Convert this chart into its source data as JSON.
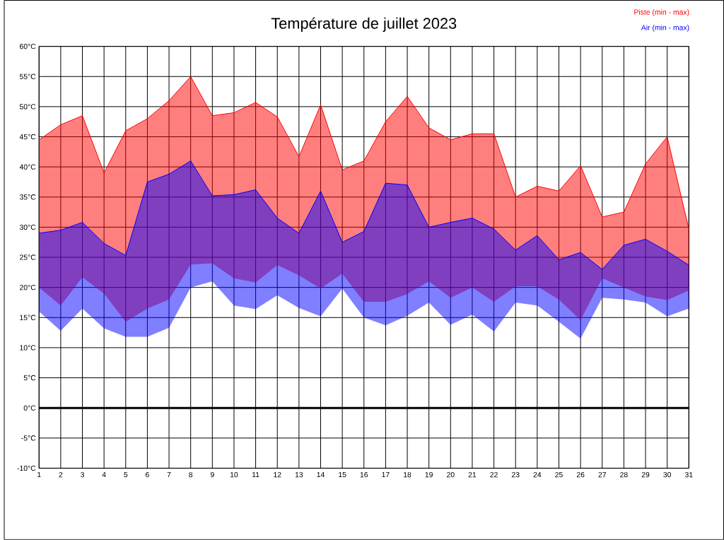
{
  "chart_data": {
    "type": "line",
    "title": "Température de juillet 2023",
    "x": [
      1,
      2,
      3,
      4,
      5,
      6,
      7,
      8,
      9,
      10,
      11,
      12,
      13,
      14,
      15,
      16,
      17,
      18,
      19,
      20,
      21,
      22,
      23,
      24,
      25,
      26,
      27,
      28,
      29,
      30,
      31
    ],
    "series": [
      {
        "name": "Piste (min - max)",
        "color": "#ff0000",
        "values": [
          44.5,
          47,
          48.5,
          39,
          46,
          48,
          51,
          55,
          48.5,
          49,
          50.7,
          48.3,
          41.7,
          50.3,
          39.5,
          41,
          47.5,
          51.7,
          46.5,
          44.5,
          45.5,
          45.5,
          35,
          36.8,
          36,
          40.2,
          31.7,
          32.5,
          40.5,
          45,
          29.7
        ],
        "upper": [
          44.5,
          47,
          48.5,
          39,
          46,
          48,
          51,
          55,
          48.5,
          49,
          50.7,
          48.3,
          41.7,
          50.3,
          39.5,
          41,
          47.5,
          51.7,
          46.5,
          44.5,
          45.5,
          45.5,
          35,
          36.8,
          36,
          40.2,
          31.7,
          32.5,
          40.5,
          45,
          29.7
        ],
        "lower": [
          20,
          17,
          21.7,
          19,
          14.3,
          16.5,
          18,
          23.8,
          24,
          21.5,
          20.8,
          23.7,
          22,
          19.8,
          22.3,
          17.6,
          17.6,
          18.9,
          21,
          18.3,
          20,
          17.6,
          20.2,
          20.2,
          18,
          14.6,
          21.5,
          20,
          18.5,
          17.9,
          19.5
        ]
      },
      {
        "name": "Air (min - max)",
        "color": "#0000ff",
        "values": [
          29,
          29.5,
          30.8,
          27.3,
          25.3,
          37.5,
          38.8,
          41,
          35.2,
          35.4,
          36.2,
          31.5,
          29,
          36,
          27.5,
          29.3,
          37.3,
          37,
          30,
          30.8,
          31.5,
          29.7,
          26.2,
          28.6,
          24.6,
          25.8,
          23,
          27,
          28,
          26,
          23.7
        ],
        "upper": [
          29,
          29.5,
          30.8,
          27.3,
          25.3,
          37.5,
          38.8,
          41,
          35.2,
          35.4,
          36.2,
          31.5,
          29,
          36,
          27.5,
          29.3,
          37.3,
          37,
          30,
          30.8,
          31.5,
          29.7,
          26.2,
          28.6,
          24.6,
          25.8,
          23,
          27,
          28,
          26,
          23.7
        ],
        "lower": [
          16,
          12.8,
          16.5,
          13.2,
          11.8,
          11.8,
          13.3,
          20,
          21,
          17,
          16.4,
          18.7,
          16.6,
          15.2,
          19.8,
          15,
          13.7,
          15.3,
          17.5,
          13.8,
          15.5,
          12.7,
          17.5,
          17,
          14.3,
          11.5,
          18.3,
          18,
          17.5,
          15.2,
          16.5
        ]
      }
    ],
    "xlim": [
      1,
      31
    ],
    "xticks": [
      1,
      2,
      3,
      4,
      5,
      6,
      7,
      8,
      9,
      10,
      11,
      12,
      13,
      14,
      15,
      16,
      17,
      18,
      19,
      20,
      21,
      22,
      23,
      24,
      25,
      26,
      27,
      28,
      29,
      30,
      31
    ],
    "ylim": [
      -10,
      60
    ],
    "yticks": [
      {
        "value": -10,
        "label": "-10°C"
      },
      {
        "value": -5,
        "label": "-5°C"
      },
      {
        "value": 0,
        "label": "0°C"
      },
      {
        "value": 5,
        "label": "5°C"
      },
      {
        "value": 10,
        "label": "10°C"
      },
      {
        "value": 15,
        "label": "15°C"
      },
      {
        "value": 20,
        "label": "20°C"
      },
      {
        "value": 25,
        "label": "25°C"
      },
      {
        "value": 30,
        "label": "30°C"
      },
      {
        "value": 35,
        "label": "35°C"
      },
      {
        "value": 40,
        "label": "40°C"
      },
      {
        "value": 45,
        "label": "45°C"
      },
      {
        "value": 50,
        "label": "50°C"
      },
      {
        "value": 55,
        "label": "55°C"
      },
      {
        "value": 60,
        "label": "60°C"
      }
    ],
    "ref_lines": [
      {
        "axis": "y",
        "value": 0,
        "color": "#000000"
      }
    ],
    "grid": true,
    "legend": "top right"
  }
}
